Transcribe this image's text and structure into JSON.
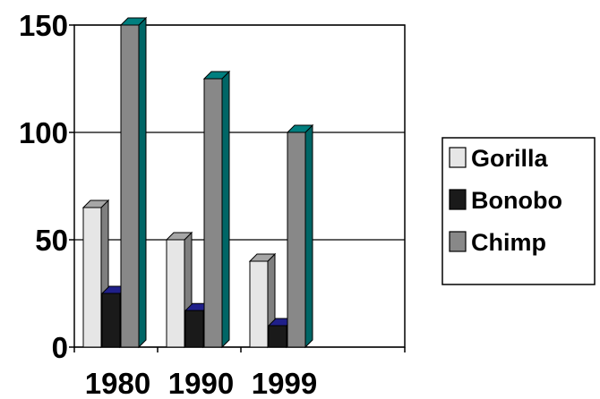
{
  "chart_data": {
    "type": "bar",
    "categories": [
      "1980",
      "1990",
      "1999"
    ],
    "series": [
      {
        "name": "Gorilla",
        "values": [
          65,
          50,
          40
        ]
      },
      {
        "name": "Bonobo",
        "values": [
          25,
          17,
          10
        ]
      },
      {
        "name": "Chimp",
        "values": [
          150,
          125,
          100
        ]
      }
    ],
    "y_ticks": [
      "0",
      "50",
      "100",
      "150"
    ],
    "ylim": [
      0,
      150
    ],
    "grid": true,
    "legend_position": "right",
    "three_d": true,
    "title": "",
    "xlabel": "",
    "ylabel": "",
    "colors": {
      "Gorilla": {
        "front": "#e6e6e6",
        "side": "#7f7f7f",
        "top": "#a6a6a6"
      },
      "Bonobo": {
        "front": "#1a1a1a",
        "side": "#0e0e0e",
        "top": "#20208a"
      },
      "Chimp": {
        "front": "#888888",
        "side": "#006666",
        "top": "#007f7f"
      }
    }
  }
}
